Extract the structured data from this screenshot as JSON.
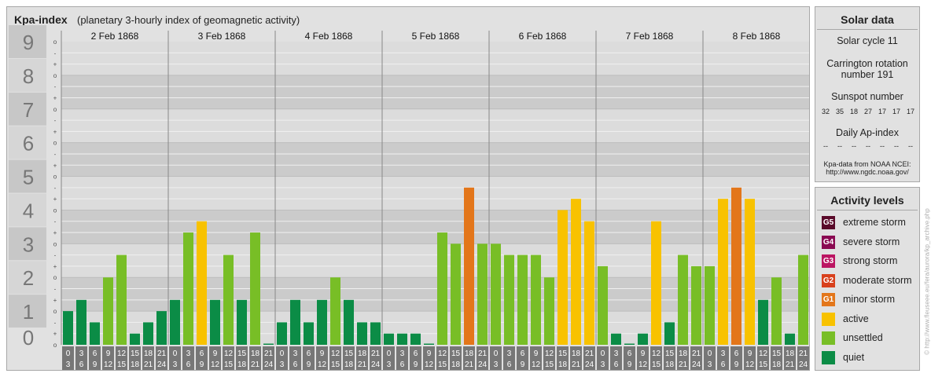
{
  "title": "Kpa-index",
  "subtitle": "(planetary 3-hourly index of geomagnetic activity)",
  "chart_data": {
    "type": "bar",
    "title": "Kpa-index",
    "subtitle": "(planetary 3-hourly index of geomagnetic activity)",
    "ylim": [
      0,
      9
    ],
    "y_major_ticks": [
      "0",
      "1",
      "2",
      "3",
      "4",
      "5",
      "6",
      "7",
      "8",
      "9"
    ],
    "y_minor_labels": [
      "o",
      "+",
      "-"
    ],
    "days": [
      "2 Feb 1868",
      "3 Feb 1868",
      "4 Feb 1868",
      "5 Feb 1868",
      "6 Feb 1868",
      "7 Feb 1868",
      "8 Feb 1868"
    ],
    "interval_top_labels": [
      "0",
      "3",
      "6",
      "9",
      "12",
      "15",
      "18",
      "21"
    ],
    "interval_bottom_labels": [
      "3",
      "6",
      "9",
      "12",
      "15",
      "18",
      "21",
      "24"
    ],
    "values": [
      [
        1.0,
        1.333,
        0.667,
        2.0,
        2.667,
        0.333,
        0.667,
        1.0
      ],
      [
        1.333,
        3.333,
        3.667,
        1.333,
        2.667,
        1.333,
        3.333,
        0.0
      ],
      [
        0.667,
        1.333,
        0.667,
        1.333,
        2.0,
        1.333,
        0.667,
        0.667
      ],
      [
        0.333,
        0.333,
        0.333,
        0.0,
        3.333,
        3.0,
        4.667,
        3.0
      ],
      [
        3.0,
        2.667,
        2.667,
        2.667,
        2.0,
        4.0,
        4.333,
        3.667
      ],
      [
        2.333,
        0.333,
        0.0,
        0.333,
        3.667,
        0.667,
        2.667,
        2.333
      ],
      [
        2.333,
        4.333,
        4.667,
        4.333,
        1.333,
        2.0,
        0.333,
        2.667
      ]
    ],
    "levels": [
      {
        "name": "quiet",
        "max": 1.67,
        "color": "#0b8c46"
      },
      {
        "name": "unsettled",
        "max": 3.5,
        "color": "#78be26"
      },
      {
        "name": "active",
        "max": 4.5,
        "color": "#f8c200"
      },
      {
        "name": "minor storm",
        "max": 5.5,
        "color": "#e3761a"
      }
    ],
    "grid": true
  },
  "solar": {
    "title": "Solar data",
    "cycle": "Solar cycle 11",
    "carrington_line1": "Carrington rotation",
    "carrington_line2": "number 191",
    "sunspot_title": "Sunspot number",
    "sunspot_values": [
      "32",
      "35",
      "18",
      "27",
      "17",
      "17",
      "17"
    ],
    "ap_title": "Daily Ap-index",
    "ap_values": [
      "--",
      "--",
      "--",
      "--",
      "--",
      "--",
      "--"
    ],
    "source_line1": "Kpa-data from NOAA NCEI:",
    "source_line2": "http://www.ngdc.noaa.gov/"
  },
  "activity": {
    "title": "Activity levels",
    "items": [
      {
        "code": "G5",
        "label": "extreme storm",
        "color": "#5a0a2a"
      },
      {
        "code": "G4",
        "label": "severe storm",
        "color": "#8a0a52"
      },
      {
        "code": "G3",
        "label": "strong storm",
        "color": "#bb1562"
      },
      {
        "code": "G2",
        "label": "moderate storm",
        "color": "#d8401c"
      },
      {
        "code": "G1",
        "label": "minor storm",
        "color": "#e3761a"
      },
      {
        "code": "",
        "label": "active",
        "color": "#f8c200"
      },
      {
        "code": "",
        "label": "unsettled",
        "color": "#78be26"
      },
      {
        "code": "",
        "label": "quiet",
        "color": "#0b8c46"
      }
    ]
  },
  "credit": "© http://www.fleuseee.eu/fera/aurora/kp_archive.php"
}
